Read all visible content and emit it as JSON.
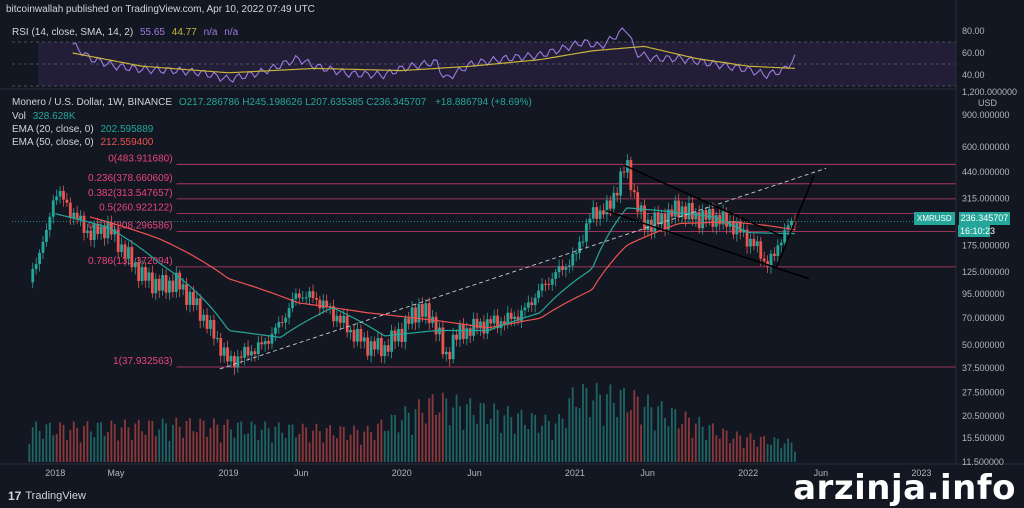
{
  "header": {
    "publisher_text": "bitcoinwallah published on TradingView.com, Apr 10, 2022 07:49 UTC"
  },
  "rsi_legend": {
    "label": "RSI (14, close, SMA, 14, 2)",
    "value1": "55.65",
    "value2": "44.77",
    "value3": "n/a",
    "value4": "n/a"
  },
  "main_legend": {
    "symbol": "Monero / U.S. Dollar, 1W, BINANCE",
    "ohlc": "O217.286786  H245.198626  L207.635385  C236.345707",
    "change": "+18.886794 (+8.69%)",
    "vol_label": "Vol",
    "vol_value": "328.628K",
    "ema20_label": "EMA (20, close, 0)",
    "ema20_value": "202.595889",
    "ema50_label": "EMA (50, close, 0)",
    "ema50_value": "212.559400"
  },
  "price_tag": {
    "symbol": "XMRUSD",
    "price": "236.345707",
    "countdown": "16:10:23"
  },
  "footer": {
    "brand": "TradingView",
    "logo_text": "17"
  },
  "watermark": "arzinja.info",
  "colors": {
    "background": "#131722",
    "up": "#26a69a",
    "down": "#ef5350",
    "ema20": "#26a69a",
    "ema50": "#ef5350",
    "fib": "#e9447a",
    "rsi": "#9c7ae0",
    "rsi_ma": "#c9b33b"
  },
  "chart_data": [
    {
      "type": "line",
      "panel": "RSI",
      "y_ticks": [
        "80.00",
        "60.00",
        "40.00"
      ],
      "ylim": [
        30,
        90
      ],
      "bands": [
        70,
        50,
        30
      ],
      "rsi_series": {
        "x": [
          2018.1,
          2018.2,
          2018.35,
          2018.5,
          2018.7,
          2018.85,
          2019.0,
          2019.2,
          2019.4,
          2019.5,
          2019.7,
          2019.9,
          2020.0,
          2020.2,
          2020.25,
          2020.4,
          2020.6,
          2020.8,
          2020.95,
          2021.05,
          2021.15,
          2021.3,
          2021.35,
          2021.45,
          2021.6,
          2021.8,
          2022.0,
          2022.1,
          2022.2,
          2022.27
        ],
        "values": [
          68,
          55,
          48,
          45,
          44,
          42,
          36,
          43,
          55,
          48,
          41,
          40,
          46,
          52,
          36,
          50,
          55,
          58,
          65,
          70,
          66,
          83,
          60,
          55,
          55,
          50,
          45,
          40,
          44,
          55
        ]
      },
      "rsi_ma_series": {
        "x": [
          2018.1,
          2018.5,
          2019.0,
          2019.5,
          2020.0,
          2020.4,
          2020.8,
          2021.1,
          2021.4,
          2021.7,
          2022.0,
          2022.27
        ],
        "values": [
          60,
          48,
          42,
          46,
          44,
          48,
          54,
          62,
          66,
          55,
          48,
          46
        ]
      }
    },
    {
      "type": "candlestick",
      "panel": "price",
      "title": "Monero / U.S. Dollar, 1W, BINANCE",
      "ylabel": "USD",
      "y_scale": "log",
      "y_ticks": [
        "1,200.000000",
        "900.000000",
        "600.000000",
        "440.000000",
        "315.000000",
        "250.000000",
        "175.000000",
        "125.000000",
        "95.000000",
        "70.000000",
        "50.000000",
        "37.500000",
        "27.500000",
        "20.500000",
        "15.500000",
        "11.500000"
      ],
      "x_ticks": [
        "2018",
        "May",
        "2019",
        "Jun",
        "2020",
        "Jun",
        "2021",
        "Jun",
        "2022",
        "Jun",
        "2023"
      ],
      "fib_levels": [
        {
          "label": "0(483.911680)",
          "value": 483.91168
        },
        {
          "label": "0.236(378.660609)",
          "value": 378.660609
        },
        {
          "label": "0.382(313.547657)",
          "value": 313.547657
        },
        {
          "label": "0.5(260.922122)",
          "value": 260.922122
        },
        {
          "label": "0.618(208.296586)",
          "value": 208.296586
        },
        {
          "label": "0.786(133.372094)",
          "value": 133.372094
        },
        {
          "label": "1(37.932563)",
          "value": 37.932563
        }
      ],
      "close_series": {
        "x": [
          2017.85,
          2017.95,
          2018.0,
          2018.1,
          2018.2,
          2018.3,
          2018.4,
          2018.5,
          2018.6,
          2018.7,
          2018.8,
          2018.9,
          2019.0,
          2019.1,
          2019.2,
          2019.3,
          2019.4,
          2019.5,
          2019.6,
          2019.7,
          2019.8,
          2019.9,
          2020.0,
          2020.1,
          2020.2,
          2020.25,
          2020.3,
          2020.4,
          2020.5,
          2020.6,
          2020.7,
          2020.8,
          2020.9,
          2021.0,
          2021.1,
          2021.2,
          2021.3,
          2021.35,
          2021.4,
          2021.5,
          2021.6,
          2021.7,
          2021.8,
          2021.9,
          2022.0,
          2022.05,
          2022.1,
          2022.15,
          2022.2,
          2022.27
        ],
        "values": [
          110,
          200,
          350,
          260,
          200,
          220,
          160,
          120,
          105,
          110,
          85,
          60,
          40,
          45,
          50,
          65,
          95,
          90,
          75,
          60,
          50,
          48,
          60,
          80,
          65,
          40,
          55,
          62,
          66,
          68,
          75,
          100,
          125,
          150,
          260,
          280,
          480,
          300,
          230,
          240,
          280,
          250,
          250,
          230,
          190,
          170,
          140,
          150,
          205,
          236.35
        ]
      },
      "ema20_series": {
        "x": [
          2018.0,
          2018.3,
          2018.6,
          2019.0,
          2019.3,
          2019.6,
          2019.9,
          2020.2,
          2020.5,
          2020.8,
          2021.1,
          2021.3,
          2021.5,
          2021.8,
          2022.0,
          2022.27
        ],
        "values": [
          260,
          220,
          140,
          60,
          55,
          80,
          56,
          60,
          60,
          75,
          130,
          280,
          270,
          250,
          205,
          202.6
        ]
      },
      "ema50_series": {
        "x": [
          2018.2,
          2018.6,
          2019.0,
          2019.4,
          2019.8,
          2020.2,
          2020.5,
          2020.8,
          2021.1,
          2021.3,
          2021.6,
          2021.9,
          2022.1,
          2022.27
        ],
        "values": [
          250,
          190,
          115,
          85,
          75,
          68,
          62,
          70,
          100,
          175,
          230,
          235,
          225,
          212.6
        ]
      },
      "trendlines": [
        {
          "name": "dashed-support",
          "points": [
            [
              2018.95,
              37
            ],
            [
              2022.45,
              460
            ]
          ]
        },
        {
          "name": "channel-upper",
          "points": [
            [
              2021.28,
              480
            ],
            [
              2022.2,
              195
            ]
          ]
        },
        {
          "name": "channel-lower",
          "points": [
            [
              2021.18,
              270
            ],
            [
              2022.35,
              115
            ]
          ]
        },
        {
          "name": "breakout-line",
          "points": [
            [
              2022.16,
              130
            ],
            [
              2022.38,
              420
            ]
          ]
        }
      ],
      "volume": {
        "x_range": [
          2017.85,
          2022.27
        ],
        "relative_peaks": [
          [
            2018.1,
            0.45
          ],
          [
            2018.8,
            0.5
          ],
          [
            2019.2,
            0.45
          ],
          [
            2019.8,
            0.4
          ],
          [
            2020.2,
            0.8
          ],
          [
            2020.9,
            0.5
          ],
          [
            2021.0,
            0.9
          ],
          [
            2021.3,
            0.85
          ],
          [
            2021.9,
            0.35
          ],
          [
            2022.27,
            0.25
          ]
        ]
      }
    }
  ]
}
